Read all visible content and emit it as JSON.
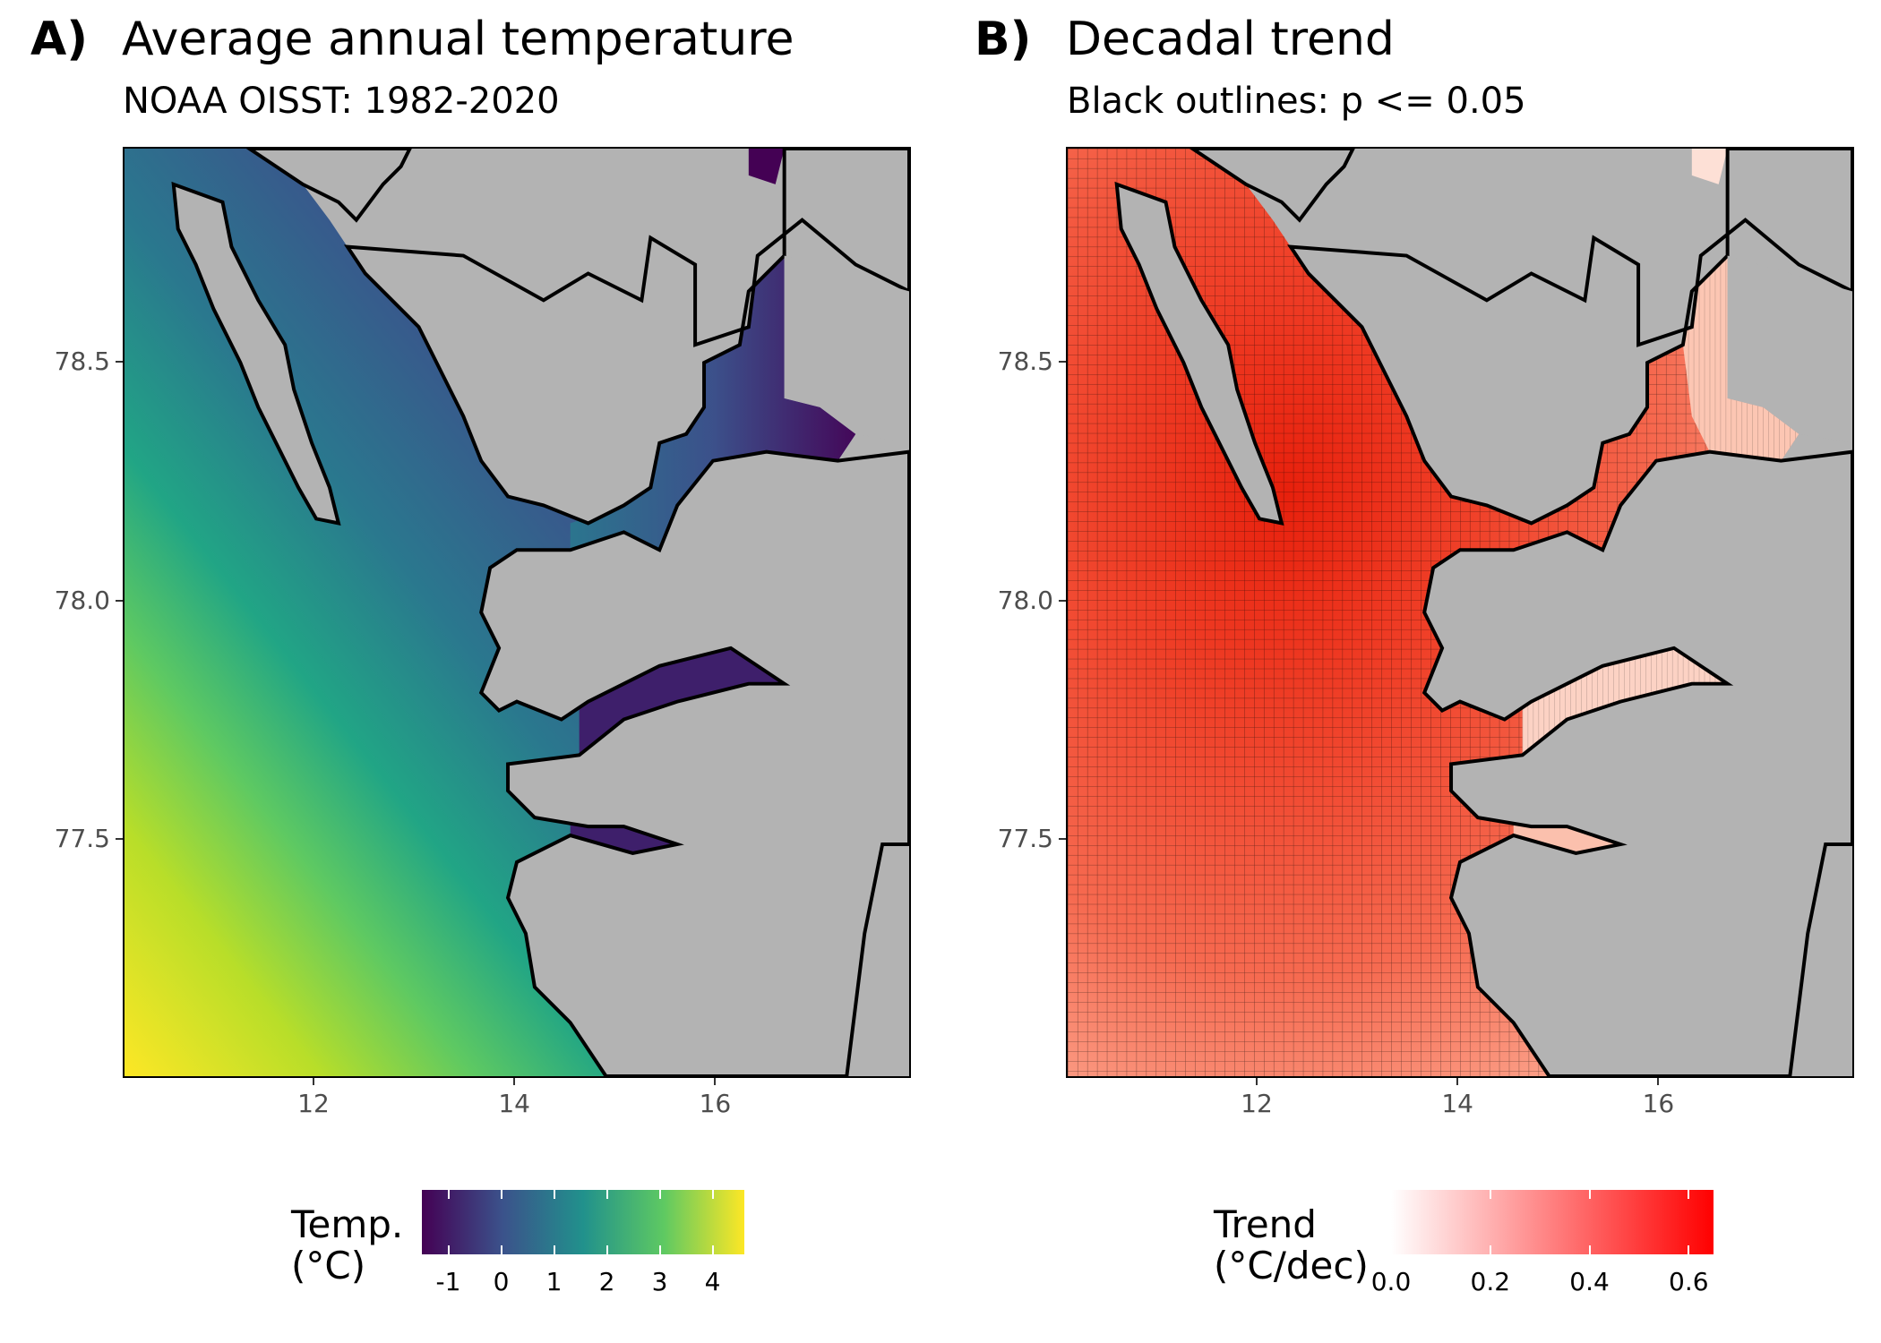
{
  "panels": [
    {
      "tag": "A)",
      "title": "Average annual temperature",
      "subtitle": "NOAA OISST: 1982-2020",
      "legend": {
        "title_line1": "Temp.",
        "title_line2": "(°C)",
        "ticks": [
          "-1",
          "0",
          "1",
          "2",
          "3",
          "4"
        ],
        "tick_values": [
          -1,
          0,
          1,
          2,
          3,
          4
        ],
        "range": [
          -1.5,
          4.6
        ],
        "colors": [
          "#440154",
          "#3b528b",
          "#21918c",
          "#5ec962",
          "#fde725"
        ]
      }
    },
    {
      "tag": "B)",
      "title": "Decadal trend",
      "subtitle": "Black outlines: p <= 0.05",
      "legend": {
        "title_line1": "Trend",
        "title_line2": "(°C/dec)",
        "ticks": [
          "0.0",
          "0.2",
          "0.4",
          "0.6"
        ],
        "tick_values": [
          0.0,
          0.2,
          0.4,
          0.6
        ],
        "range": [
          0.0,
          0.65
        ],
        "colors": [
          "#ffffff",
          "#ff0000"
        ]
      }
    }
  ],
  "axes": {
    "y_ticks": [
      "78.5",
      "78.0",
      "77.5"
    ],
    "y_values": [
      78.5,
      78.0,
      77.5
    ],
    "x_ticks": [
      "12",
      "14",
      "16"
    ],
    "x_values": [
      12,
      14,
      16
    ],
    "xlim": [
      10.1,
      17.95
    ],
    "ylim": [
      77.0,
      78.95
    ]
  },
  "colors": {
    "land": "#b3b3b3",
    "coastline": "#000000"
  }
}
